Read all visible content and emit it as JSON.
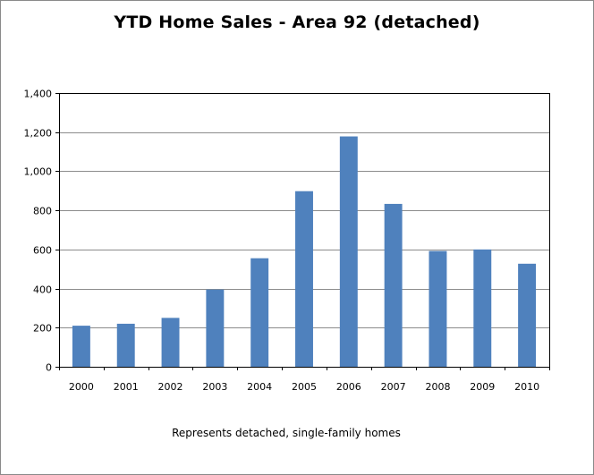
{
  "chart_data": {
    "type": "bar",
    "title": "YTD Home Sales - Area 92 (detached)",
    "xlabel": "",
    "ylabel": "",
    "categories": [
      "2000",
      "2001",
      "2002",
      "2003",
      "2004",
      "2005",
      "2006",
      "2007",
      "2008",
      "2009",
      "2010"
    ],
    "series": [
      {
        "values": [
          210,
          220,
          250,
          395,
          555,
          898,
          1178,
          833,
          592,
          600,
          527
        ],
        "color": "#4f81bd"
      }
    ],
    "ylim": [
      0,
      1400
    ],
    "yticks": [
      0,
      200,
      400,
      600,
      800,
      1000,
      1200,
      1400
    ],
    "ytick_labels": [
      "0",
      "200",
      "400",
      "600",
      "800",
      "1,000",
      "1,200",
      "1,400"
    ],
    "grid": true,
    "legend": "none",
    "footnote": "Represents detached, single-family homes"
  }
}
